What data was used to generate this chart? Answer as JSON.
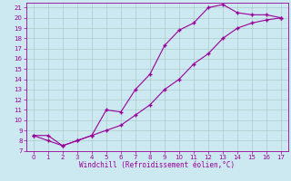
{
  "xlabel": "Windchill (Refroidissement éolien,°C)",
  "line1_x": [
    0,
    1,
    2,
    3,
    4,
    5,
    6,
    7,
    8,
    9,
    10,
    11,
    12,
    13,
    14,
    15,
    16,
    17
  ],
  "line1_y": [
    8.5,
    8.5,
    7.5,
    8.0,
    8.5,
    11.0,
    10.8,
    13.0,
    14.5,
    17.3,
    18.8,
    19.5,
    21.0,
    21.3,
    20.5,
    20.3,
    20.3,
    20.0
  ],
  "line2_x": [
    0,
    1,
    2,
    3,
    4,
    5,
    6,
    7,
    8,
    9,
    10,
    11,
    12,
    13,
    14,
    15,
    16,
    17
  ],
  "line2_y": [
    8.5,
    8.0,
    7.5,
    8.0,
    8.5,
    9.0,
    9.5,
    10.5,
    11.5,
    13.0,
    14.0,
    15.5,
    16.5,
    18.0,
    19.0,
    19.5,
    19.8,
    20.0
  ],
  "line_color": "#990099",
  "bg_color": "#cce8f0",
  "grid_color": "#aacccc",
  "xlim": [
    -0.5,
    17.5
  ],
  "ylim": [
    7,
    21.5
  ],
  "xticks": [
    0,
    1,
    2,
    3,
    4,
    5,
    6,
    7,
    8,
    9,
    10,
    11,
    12,
    13,
    14,
    15,
    16,
    17
  ],
  "yticks": [
    7,
    8,
    9,
    10,
    11,
    12,
    13,
    14,
    15,
    16,
    17,
    18,
    19,
    20,
    21
  ],
  "marker": "+"
}
